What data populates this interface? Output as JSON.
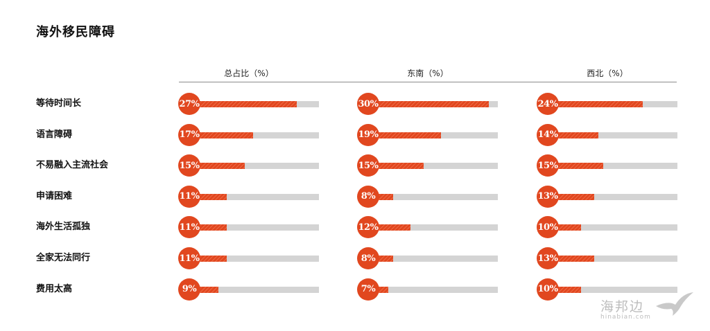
{
  "title": "海外移民障碍",
  "chart_data": {
    "type": "bar",
    "title": "海外移民障碍",
    "categories": [
      "等待时间长",
      "语言障碍",
      "不易融入主流社会",
      "申请困难",
      "海外生活孤独",
      "全家无法同行",
      "费用太高"
    ],
    "series": [
      {
        "name": "总占比（%）",
        "values": [
          27,
          17,
          15,
          11,
          11,
          11,
          9
        ]
      },
      {
        "name": "东南（%）",
        "values": [
          30,
          19,
          15,
          8,
          12,
          8,
          7
        ]
      },
      {
        "name": "西北（%）",
        "values": [
          24,
          14,
          15,
          13,
          10,
          13,
          10
        ]
      }
    ],
    "value_labels": [
      [
        "27%",
        "17%",
        "15%",
        "11%",
        "11%",
        "11%",
        "9%"
      ],
      [
        "30%",
        "19%",
        "15%",
        "8%",
        "12%",
        "8%",
        "7%"
      ],
      [
        "24%",
        "14%",
        "15%",
        "13%",
        "10%",
        "13%",
        "10%"
      ]
    ],
    "xlim": [
      0,
      32
    ],
    "colors": {
      "fill": "#e1471f",
      "track": "#d4d4d4",
      "bubble_text": "#ffffff"
    }
  },
  "watermark": {
    "cn": "海邦边",
    "en": "hinabian.com"
  }
}
